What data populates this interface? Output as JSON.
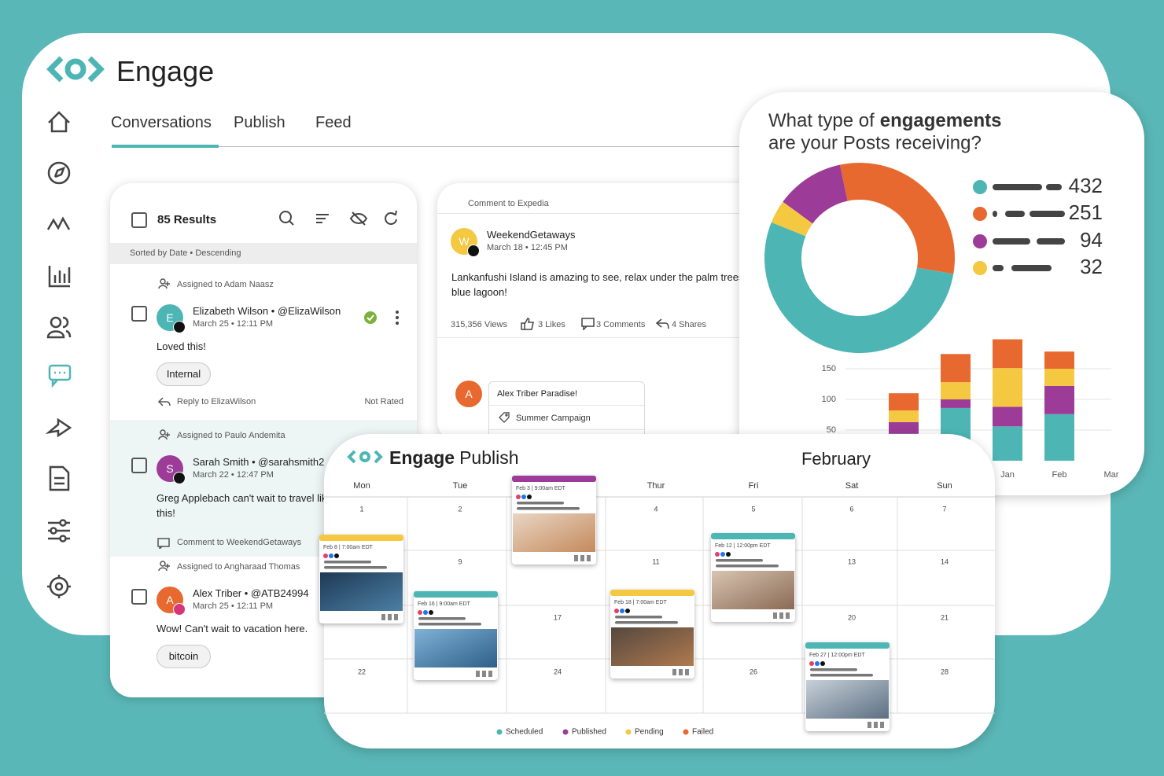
{
  "app": {
    "name": "Engage",
    "tabs": [
      "Conversations",
      "Publish",
      "Feed"
    ]
  },
  "conversations": {
    "results": "85 Results",
    "sort": "Sorted by Date • Descending",
    "items": [
      {
        "assigned": "Assigned to Adam Naasz",
        "avatar": "E",
        "name": "Elizabeth Wilson • @ElizaWilson",
        "date": "March 25 • 12:11 PM",
        "text": "Loved this!",
        "tag": "Internal",
        "reply": "Reply to ElizaWilson",
        "rating": "Not Rated"
      },
      {
        "assigned": "Assigned to Paulo Andemita",
        "avatar": "S",
        "name": "Sarah Smith • @sarahsmith2",
        "date": "March 22 • 12:47 PM",
        "text": "Greg Applebach can't wait to travel like this!",
        "comment": "Comment to WeekendGetaways"
      },
      {
        "assigned": "Assigned to Angharaad Thomas",
        "avatar": "A",
        "name": "Alex Triber • @ATB24994",
        "date": "March 25 • 12:11 PM",
        "text": "Wow! Can't wait to vacation here.",
        "tag": "bitcoin"
      }
    ]
  },
  "post": {
    "context": "Comment to Expedia",
    "avatar": "W",
    "author": "WeekendGetaways",
    "date": "March 18 • 12:45 PM",
    "text": "Lankanfushi Island is amazing to see, relax under the palm trees in blue lagoon!",
    "views": "315,356 Views",
    "likes": "3 Likes",
    "comments": "3 Comments",
    "shares": "4 Shares",
    "reply": {
      "avatar": "A",
      "text": "Alex Triber Paradise!",
      "tag": "Summer Campaign"
    }
  },
  "chart_data": [
    {
      "type": "pie",
      "title": {
        "pre": "What type of",
        "bold": "engagements",
        "post": "are your Posts receiving?"
      },
      "values": [
        432,
        251,
        94,
        32
      ],
      "colors": [
        "#4db6b5",
        "#e8692f",
        "#9c3c98",
        "#f5c842"
      ]
    },
    {
      "type": "bar",
      "stacked": true,
      "categories": [
        null,
        null,
        "Jan",
        "Feb",
        "Mar"
      ],
      "series": [
        {
          "color": "#4db6b5",
          "values": [
            44,
            86,
            56,
            76,
            null
          ]
        },
        {
          "color": "#9c3c98",
          "values": [
            19,
            14,
            32,
            46,
            null
          ]
        },
        {
          "color": "#f5c842",
          "values": [
            19,
            28,
            63,
            28,
            null
          ]
        },
        {
          "color": "#e8692f",
          "values": [
            28,
            46,
            47,
            28,
            null
          ]
        }
      ],
      "ylim": [
        0,
        200
      ],
      "yticks": [
        50,
        100,
        150
      ],
      "grid": true
    }
  ],
  "calendar": {
    "brand": "Engage",
    "product": "Publish",
    "month": "February",
    "days": [
      "Mon",
      "Tue",
      null,
      "Thur",
      "Fri",
      "Sat",
      "Sun"
    ],
    "dates": [
      "1",
      "2",
      null,
      "4",
      "5",
      "6",
      "7",
      null,
      "9",
      null,
      "11",
      null,
      "13",
      "14",
      null,
      null,
      "17",
      null,
      null,
      "20",
      "21",
      "22",
      null,
      "24",
      null,
      "26",
      null,
      "28"
    ],
    "events": [
      {
        "label": "Feb 3 | 9:00am EDT",
        "color": "#9c3c98"
      },
      {
        "label": "Feb 8 | 7:00am EDT",
        "color": "#f5c842"
      },
      {
        "label": "Feb 16 | 9:00am EDT",
        "color": "#4db6b5"
      },
      {
        "label": "Feb 18 | 7:00am EDT",
        "color": "#f5c842"
      },
      {
        "label": "Feb 12 | 12:00pm EDT",
        "color": "#4db6b5"
      },
      {
        "label": "Feb 27 | 12:00pm EDT",
        "color": "#4db6b5"
      }
    ],
    "legend": [
      {
        "label": "Scheduled",
        "color": "#4db6b5"
      },
      {
        "label": "Published",
        "color": "#9c3c98"
      },
      {
        "label": "Pending",
        "color": "#f5c842"
      },
      {
        "label": "Failed",
        "color": "#e8692f"
      }
    ]
  }
}
